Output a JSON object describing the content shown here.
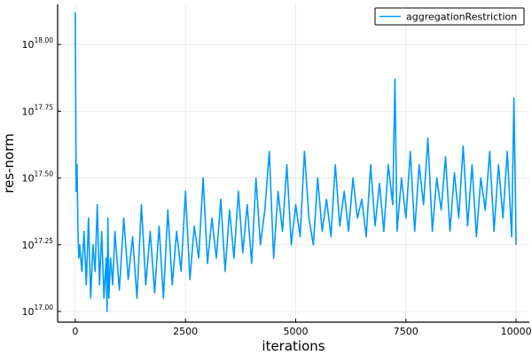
{
  "chart_data": {
    "type": "line",
    "title": "",
    "xlabel": "iterations",
    "ylabel": "res-norm",
    "xlim": [
      -400,
      10300
    ],
    "ylim_log10": [
      16.96,
      18.15
    ],
    "y_scale": "log10",
    "grid": true,
    "legend_position": "top-right",
    "x_ticks": [
      0,
      2500,
      5000,
      7500,
      10000
    ],
    "x_tick_labels": [
      "0",
      "2500",
      "5000",
      "7500",
      "10000"
    ],
    "y_ticks_log10": [
      17.0,
      17.25,
      17.5,
      17.75,
      18.0
    ],
    "y_tick_mantissas": [
      "17.00",
      "17.25",
      "17.50",
      "17.75",
      "18.00"
    ],
    "y_tick_base": "10",
    "series": [
      {
        "name": "aggregationRestriction",
        "color": "#009AFA",
        "x": [
          0,
          20,
          40,
          60,
          80,
          100,
          150,
          200,
          250,
          300,
          350,
          400,
          450,
          500,
          550,
          600,
          650,
          700,
          720,
          740,
          760,
          800,
          850,
          900,
          1000,
          1100,
          1200,
          1300,
          1400,
          1500,
          1600,
          1700,
          1800,
          1900,
          2000,
          2100,
          2200,
          2300,
          2400,
          2500,
          2600,
          2700,
          2800,
          2900,
          3000,
          3100,
          3200,
          3300,
          3400,
          3500,
          3600,
          3700,
          3800,
          3900,
          4000,
          4100,
          4200,
          4300,
          4400,
          4500,
          4600,
          4700,
          4800,
          4900,
          5000,
          5100,
          5200,
          5300,
          5400,
          5500,
          5600,
          5700,
          5800,
          5900,
          6000,
          6100,
          6200,
          6300,
          6400,
          6500,
          6600,
          6700,
          6800,
          6900,
          7000,
          7100,
          7200,
          7250,
          7300,
          7400,
          7500,
          7600,
          7700,
          7800,
          7900,
          8000,
          8100,
          8200,
          8300,
          8400,
          8500,
          8600,
          8700,
          8800,
          8900,
          9000,
          9100,
          9200,
          9300,
          9400,
          9500,
          9600,
          9700,
          9800,
          9900,
          9950,
          10000
        ],
        "y_log10": [
          18.12,
          17.45,
          17.55,
          17.3,
          17.2,
          17.25,
          17.15,
          17.3,
          17.1,
          17.35,
          17.05,
          17.25,
          17.15,
          17.4,
          17.1,
          17.3,
          17.05,
          17.2,
          17.0,
          17.35,
          17.05,
          17.2,
          17.1,
          17.3,
          17.08,
          17.35,
          17.12,
          17.28,
          17.05,
          17.4,
          17.1,
          17.3,
          17.07,
          17.32,
          17.05,
          17.38,
          17.1,
          17.3,
          17.15,
          17.45,
          17.12,
          17.32,
          17.2,
          17.5,
          17.18,
          17.35,
          17.2,
          17.42,
          17.15,
          17.38,
          17.2,
          17.45,
          17.22,
          17.4,
          17.18,
          17.5,
          17.25,
          17.38,
          17.6,
          17.2,
          17.45,
          17.3,
          17.55,
          17.25,
          17.4,
          17.28,
          17.6,
          17.35,
          17.25,
          17.5,
          17.3,
          17.42,
          17.28,
          17.55,
          17.32,
          17.45,
          17.3,
          17.5,
          17.35,
          17.42,
          17.28,
          17.55,
          17.32,
          17.48,
          17.3,
          17.55,
          17.4,
          17.87,
          17.3,
          17.5,
          17.35,
          17.6,
          17.3,
          17.55,
          17.4,
          17.65,
          17.3,
          17.5,
          17.38,
          17.58,
          17.3,
          17.52,
          17.35,
          17.62,
          17.32,
          17.55,
          17.28,
          17.5,
          17.38,
          17.6,
          17.3,
          17.55,
          17.35,
          17.6,
          17.28,
          17.8,
          17.25
        ]
      }
    ]
  }
}
